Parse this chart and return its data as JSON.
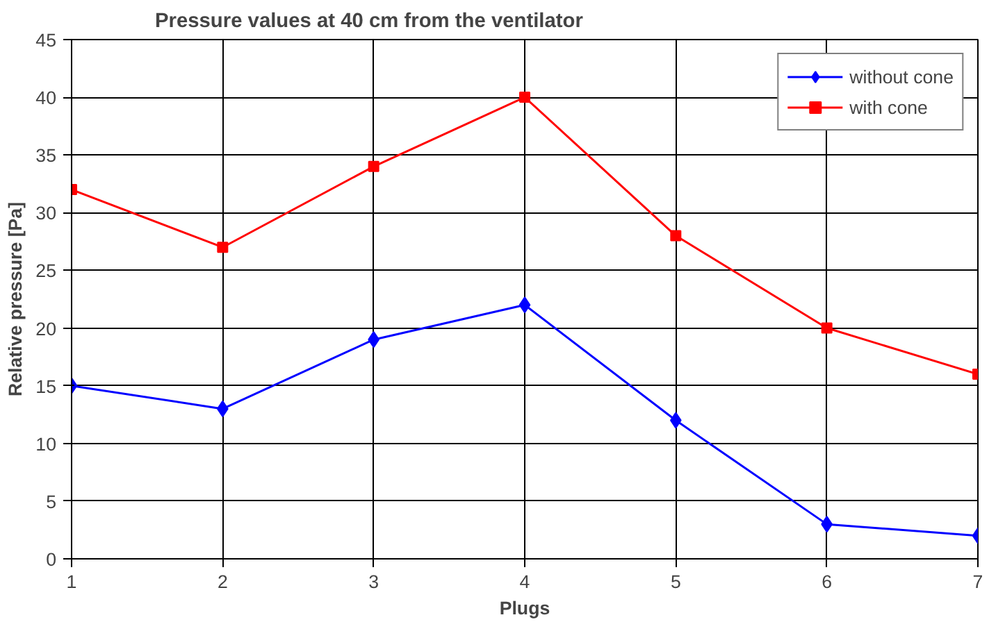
{
  "chart_data": {
    "type": "line",
    "title": "Pressure values at 40 cm from the ventilator",
    "xlabel": "Plugs",
    "ylabel": "Relative pressure [Pa]",
    "x": [
      1,
      2,
      3,
      4,
      5,
      6,
      7
    ],
    "series": [
      {
        "name": "without cone",
        "color": "#0000ff",
        "marker": "diamond",
        "values": [
          15,
          13,
          19,
          22,
          12,
          3,
          2
        ]
      },
      {
        "name": "with cone",
        "color": "#ff0000",
        "marker": "square",
        "values": [
          32,
          27,
          34,
          40,
          28,
          20,
          16
        ]
      }
    ],
    "xlim": [
      1,
      7
    ],
    "xticks": [
      1,
      2,
      3,
      4,
      5,
      6,
      7
    ],
    "ylim": [
      0,
      45
    ],
    "yticks": [
      0,
      5,
      10,
      15,
      20,
      25,
      30,
      35,
      40,
      45
    ],
    "grid": true,
    "legend": "top right",
    "line_style": "solid"
  }
}
